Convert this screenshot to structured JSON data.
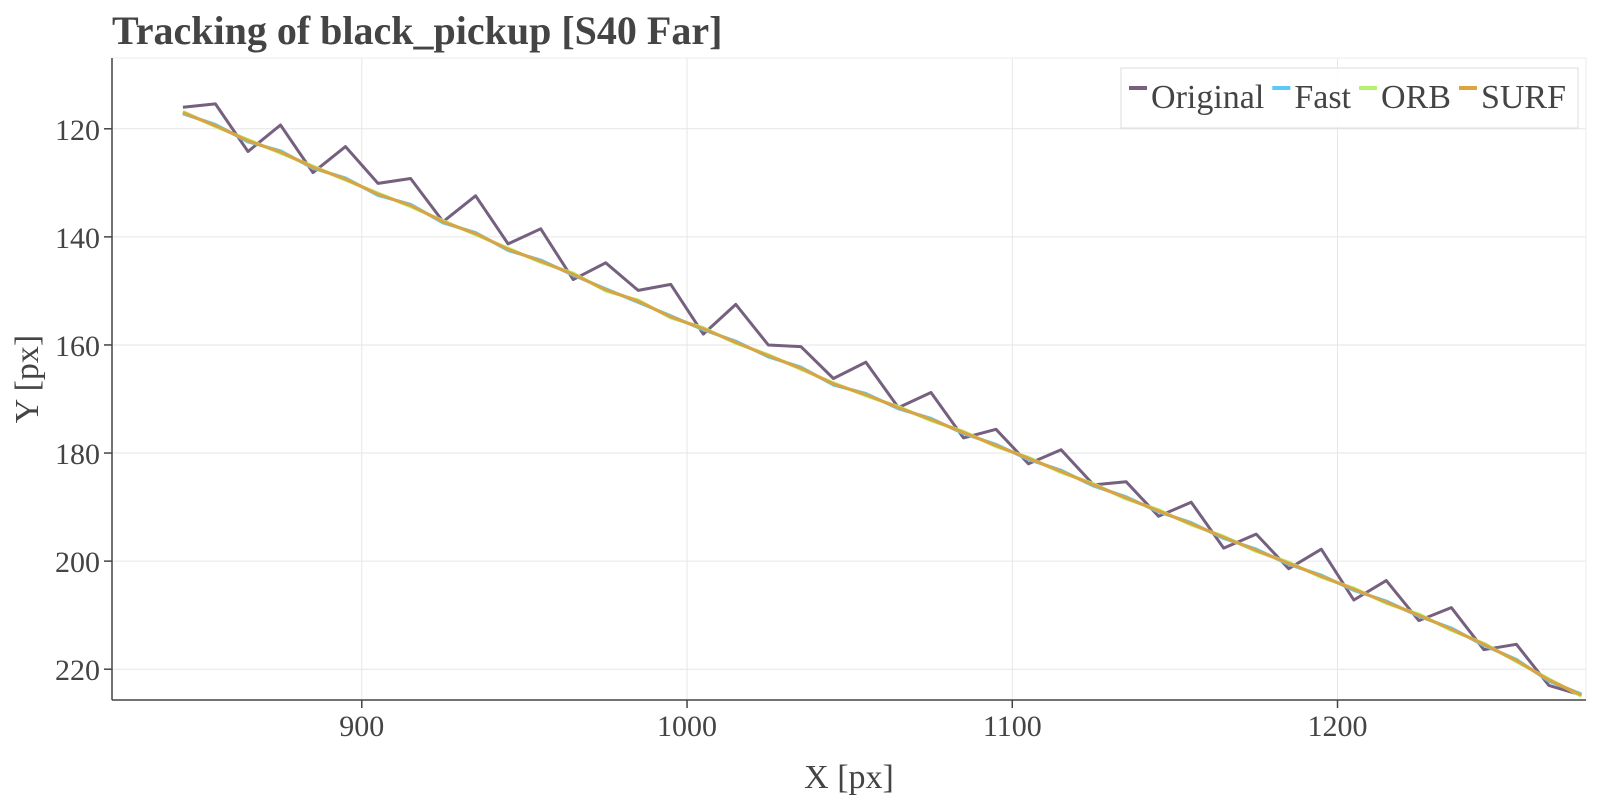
{
  "chart_data": {
    "type": "line",
    "title": "Tracking of black_pickup [S40 Far]",
    "x_label": "X [px]",
    "y_label": "Y [px]",
    "x": [
      845,
      855,
      865,
      875,
      885,
      895,
      905,
      915,
      925,
      935,
      945,
      955,
      965,
      975,
      985,
      995,
      1005,
      1015,
      1025,
      1035,
      1045,
      1055,
      1065,
      1075,
      1085,
      1095,
      1105,
      1115,
      1125,
      1135,
      1145,
      1155,
      1165,
      1175,
      1185,
      1195,
      1205,
      1215,
      1225,
      1235,
      1245,
      1255,
      1265,
      1275
    ],
    "series": [
      {
        "name": "Original",
        "color": "#76607f",
        "values": [
          116.0,
          115.4,
          124.2,
          119.3,
          128.1,
          123.3,
          130.1,
          129.2,
          137.2,
          132.4,
          141.3,
          138.5,
          147.9,
          144.8,
          149.9,
          148.8,
          158.0,
          152.5,
          160.0,
          160.3,
          166.2,
          163.2,
          171.6,
          168.8,
          177.2,
          175.6,
          182.0,
          179.4,
          185.9,
          185.3,
          191.7,
          189.1,
          197.6,
          195.0,
          201.4,
          197.8,
          207.2,
          203.6,
          211.0,
          208.6,
          216.4,
          215.4,
          223.0,
          224.8
        ]
      },
      {
        "name": "Fast",
        "color": "#5bc8f5",
        "values": [
          117.2,
          119.2,
          122.4,
          124.1,
          127.3,
          129.1,
          132.3,
          134.0,
          137.4,
          139.2,
          142.5,
          144.3,
          147.1,
          149.6,
          152.1,
          154.6,
          157.2,
          159.3,
          162.2,
          164.1,
          167.4,
          169.0,
          171.8,
          173.6,
          176.4,
          178.4,
          181.2,
          183.2,
          186.1,
          188.1,
          190.9,
          192.9,
          195.8,
          197.8,
          200.6,
          202.6,
          205.4,
          207.4,
          210.2,
          212.4,
          215.6,
          218.2,
          222.2,
          224.6
        ]
      },
      {
        "name": "ORB",
        "color": "#b8f070",
        "values": [
          116.8,
          119.6,
          122.0,
          124.5,
          126.9,
          129.5,
          131.9,
          134.4,
          137.0,
          139.6,
          142.1,
          144.7,
          146.7,
          150.0,
          151.7,
          155.0,
          156.8,
          159.7,
          161.8,
          164.5,
          167.0,
          169.4,
          171.4,
          174.0,
          176.0,
          178.8,
          180.8,
          183.6,
          185.7,
          188.5,
          190.5,
          193.3,
          195.4,
          198.2,
          200.2,
          203.0,
          205.0,
          207.8,
          209.8,
          212.8,
          215.2,
          218.6,
          221.8,
          225.0
        ]
      },
      {
        "name": "SURF",
        "color": "#d9a441",
        "values": [
          117.0,
          119.4,
          122.2,
          124.3,
          127.1,
          129.3,
          132.1,
          134.2,
          137.2,
          139.4,
          142.3,
          144.5,
          146.9,
          149.8,
          151.9,
          154.8,
          157.0,
          159.5,
          162.0,
          164.3,
          167.2,
          169.2,
          171.6,
          173.8,
          176.2,
          178.6,
          181.0,
          183.4,
          185.9,
          188.3,
          190.7,
          193.1,
          195.6,
          198.0,
          200.4,
          202.8,
          205.2,
          207.6,
          210.0,
          212.6,
          215.4,
          218.4,
          222.0,
          224.8
        ]
      }
    ],
    "xlim": [
      823.2,
      1276.4
    ],
    "xticks": [
      900,
      1000,
      1100,
      1200
    ],
    "ylim": [
      106.9,
      225.7
    ],
    "yticks": [
      120,
      140,
      160,
      180,
      200,
      220
    ],
    "y_reversed": true,
    "grid": true,
    "legend": "upper right"
  }
}
